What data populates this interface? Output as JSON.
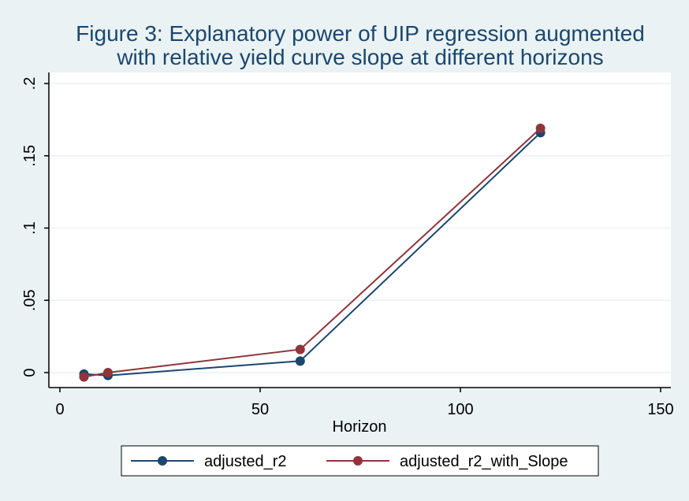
{
  "chart_data": {
    "type": "line",
    "title": [
      "Figure 3: Explanatory power of UIP regression augmented",
      "with relative yield curve slope at different horizons"
    ],
    "xlabel": "Horizon",
    "ylabel": "",
    "xlim": [
      0,
      150
    ],
    "ylim": [
      -0.01,
      0.2
    ],
    "x_ticks": [
      0,
      50,
      100,
      150
    ],
    "x_tick_labels": [
      "0",
      "50",
      "100",
      "150"
    ],
    "y_ticks": [
      0,
      0.05,
      0.1,
      0.15,
      0.2
    ],
    "y_tick_labels": [
      "0",
      ".05",
      ".1",
      ".15",
      ".2"
    ],
    "grid": "horizontal",
    "legend_position": "bottom",
    "series": [
      {
        "name": "adjusted_r2",
        "color": "#1a476f",
        "x": [
          6,
          12,
          60,
          120
        ],
        "y": [
          -0.001,
          -0.002,
          0.008,
          0.166
        ]
      },
      {
        "name": "adjusted_r2_with_Slope",
        "color": "#90353b",
        "x": [
          6,
          12,
          60,
          120
        ],
        "y": [
          -0.003,
          0.0,
          0.016,
          0.169
        ]
      }
    ]
  }
}
